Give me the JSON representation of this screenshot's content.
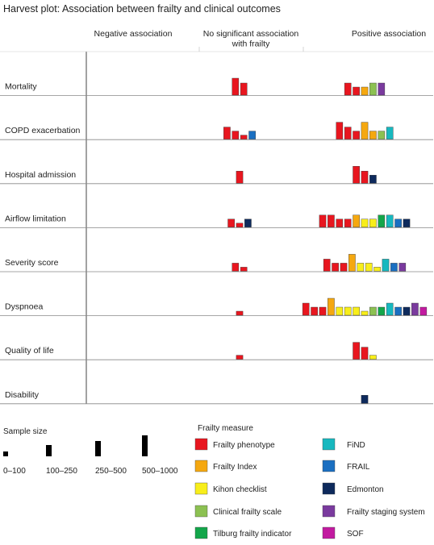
{
  "chart_data": {
    "type": "bar",
    "title": "Harvest plot: Association between frailty and clinical outcomes",
    "column_headers": [
      {
        "key": "negative",
        "lines": [
          "Negative association"
        ]
      },
      {
        "key": "none",
        "lines": [
          "No significant association",
          "with frailty"
        ]
      },
      {
        "key": "positive",
        "lines": [
          "Positive association"
        ]
      }
    ],
    "outcomes": [
      {
        "label": "Mortality",
        "bars": {
          "negative": [],
          "none": [
            {
              "m": "phen",
              "s": 4
            },
            {
              "m": "phen",
              "s": 3
            }
          ],
          "positive": [
            {
              "m": "phen",
              "s": 3
            },
            {
              "m": "phen",
              "s": 2
            },
            {
              "m": "fi",
              "s": 2
            },
            {
              "m": "cfs",
              "s": 3
            },
            {
              "m": "fss",
              "s": 3
            }
          ]
        }
      },
      {
        "label": "COPD exacerbation",
        "bars": {
          "negative": [],
          "none": [
            {
              "m": "phen",
              "s": 3
            },
            {
              "m": "phen",
              "s": 2
            },
            {
              "m": "phen",
              "s": 1
            },
            {
              "m": "frail",
              "s": 2
            }
          ],
          "positive": [
            {
              "m": "phen",
              "s": 4
            },
            {
              "m": "phen",
              "s": 3
            },
            {
              "m": "phen",
              "s": 2
            },
            {
              "m": "fi",
              "s": 4
            },
            {
              "m": "fi",
              "s": 2
            },
            {
              "m": "cfs",
              "s": 2
            },
            {
              "m": "find",
              "s": 3
            }
          ]
        }
      },
      {
        "label": "Hospital admission",
        "bars": {
          "negative": [],
          "none": [
            {
              "m": "phen",
              "s": 3
            }
          ],
          "positive": [
            {
              "m": "phen",
              "s": 4
            },
            {
              "m": "phen",
              "s": 3
            },
            {
              "m": "edm",
              "s": 2
            }
          ]
        }
      },
      {
        "label": "Airflow limitation",
        "bars": {
          "negative": [],
          "none": [
            {
              "m": "phen",
              "s": 2
            },
            {
              "m": "phen",
              "s": 1
            },
            {
              "m": "edm",
              "s": 2
            }
          ],
          "positive": [
            {
              "m": "phen",
              "s": 3
            },
            {
              "m": "phen",
              "s": 3
            },
            {
              "m": "phen",
              "s": 2
            },
            {
              "m": "phen",
              "s": 2
            },
            {
              "m": "fi",
              "s": 3
            },
            {
              "m": "kc",
              "s": 2
            },
            {
              "m": "kc",
              "s": 2
            },
            {
              "m": "tfi",
              "s": 3
            },
            {
              "m": "find",
              "s": 3
            },
            {
              "m": "frail",
              "s": 2
            },
            {
              "m": "edm",
              "s": 2
            }
          ]
        }
      },
      {
        "label": "Severity score",
        "bars": {
          "negative": [],
          "none": [
            {
              "m": "phen",
              "s": 2
            },
            {
              "m": "phen",
              "s": 1
            }
          ],
          "positive": [
            {
              "m": "phen",
              "s": 3
            },
            {
              "m": "phen",
              "s": 2
            },
            {
              "m": "phen",
              "s": 2
            },
            {
              "m": "fi",
              "s": 4
            },
            {
              "m": "kc",
              "s": 2
            },
            {
              "m": "kc",
              "s": 2
            },
            {
              "m": "kc",
              "s": 1
            },
            {
              "m": "find",
              "s": 3
            },
            {
              "m": "frail",
              "s": 2
            },
            {
              "m": "fss",
              "s": 2
            }
          ]
        }
      },
      {
        "label": "Dyspnoea",
        "bars": {
          "negative": [],
          "none": [
            {
              "m": "phen",
              "s": 1
            }
          ],
          "positive": [
            {
              "m": "phen",
              "s": 3
            },
            {
              "m": "phen",
              "s": 2
            },
            {
              "m": "phen",
              "s": 2
            },
            {
              "m": "fi",
              "s": 4
            },
            {
              "m": "kc",
              "s": 2
            },
            {
              "m": "kc",
              "s": 2
            },
            {
              "m": "kc",
              "s": 2
            },
            {
              "m": "kc",
              "s": 1
            },
            {
              "m": "cfs",
              "s": 2
            },
            {
              "m": "tfi",
              "s": 2
            },
            {
              "m": "find",
              "s": 3
            },
            {
              "m": "frail",
              "s": 2
            },
            {
              "m": "edm",
              "s": 2
            },
            {
              "m": "fss",
              "s": 3
            },
            {
              "m": "sof",
              "s": 2
            }
          ]
        }
      },
      {
        "label": "Quality of life",
        "bars": {
          "negative": [],
          "none": [
            {
              "m": "phen",
              "s": 1
            }
          ],
          "positive": [
            {
              "m": "phen",
              "s": 4
            },
            {
              "m": "phen",
              "s": 3
            },
            {
              "m": "kc",
              "s": 1
            }
          ]
        }
      },
      {
        "label": "Disability",
        "bars": {
          "negative": [],
          "none": [],
          "positive": [
            {
              "m": "edm",
              "s": 2
            }
          ]
        }
      }
    ],
    "sample_size": {
      "title": "Sample size",
      "levels": [
        {
          "level": 1,
          "label": "0–100"
        },
        {
          "level": 2,
          "label": "100–250"
        },
        {
          "level": 3,
          "label": "250–500"
        },
        {
          "level": 4,
          "label": "500–1000"
        }
      ]
    },
    "frailty_measure": {
      "title": "Frailty measure",
      "measures": [
        {
          "key": "phen",
          "label": "Frailty phenotype",
          "color": "#e8161f"
        },
        {
          "key": "fi",
          "label": "Frailty Index",
          "color": "#f5a810"
        },
        {
          "key": "kc",
          "label": "Kihon checklist",
          "color": "#f8ee1a"
        },
        {
          "key": "cfs",
          "label": "Clinical frailty scale",
          "color": "#8cc152"
        },
        {
          "key": "tfi",
          "label": "Tilburg frailty indicator",
          "color": "#13a64a"
        },
        {
          "key": "find",
          "label": "FiND",
          "color": "#17b8bf"
        },
        {
          "key": "frail",
          "label": "FRAIL",
          "color": "#1a6fc1"
        },
        {
          "key": "edm",
          "label": "Edmonton",
          "color": "#0e2a5c"
        },
        {
          "key": "fss",
          "label": "Frailty staging system",
          "color": "#7a3a9e"
        },
        {
          "key": "sof",
          "label": "SOF",
          "color": "#c21aa0"
        }
      ]
    }
  }
}
